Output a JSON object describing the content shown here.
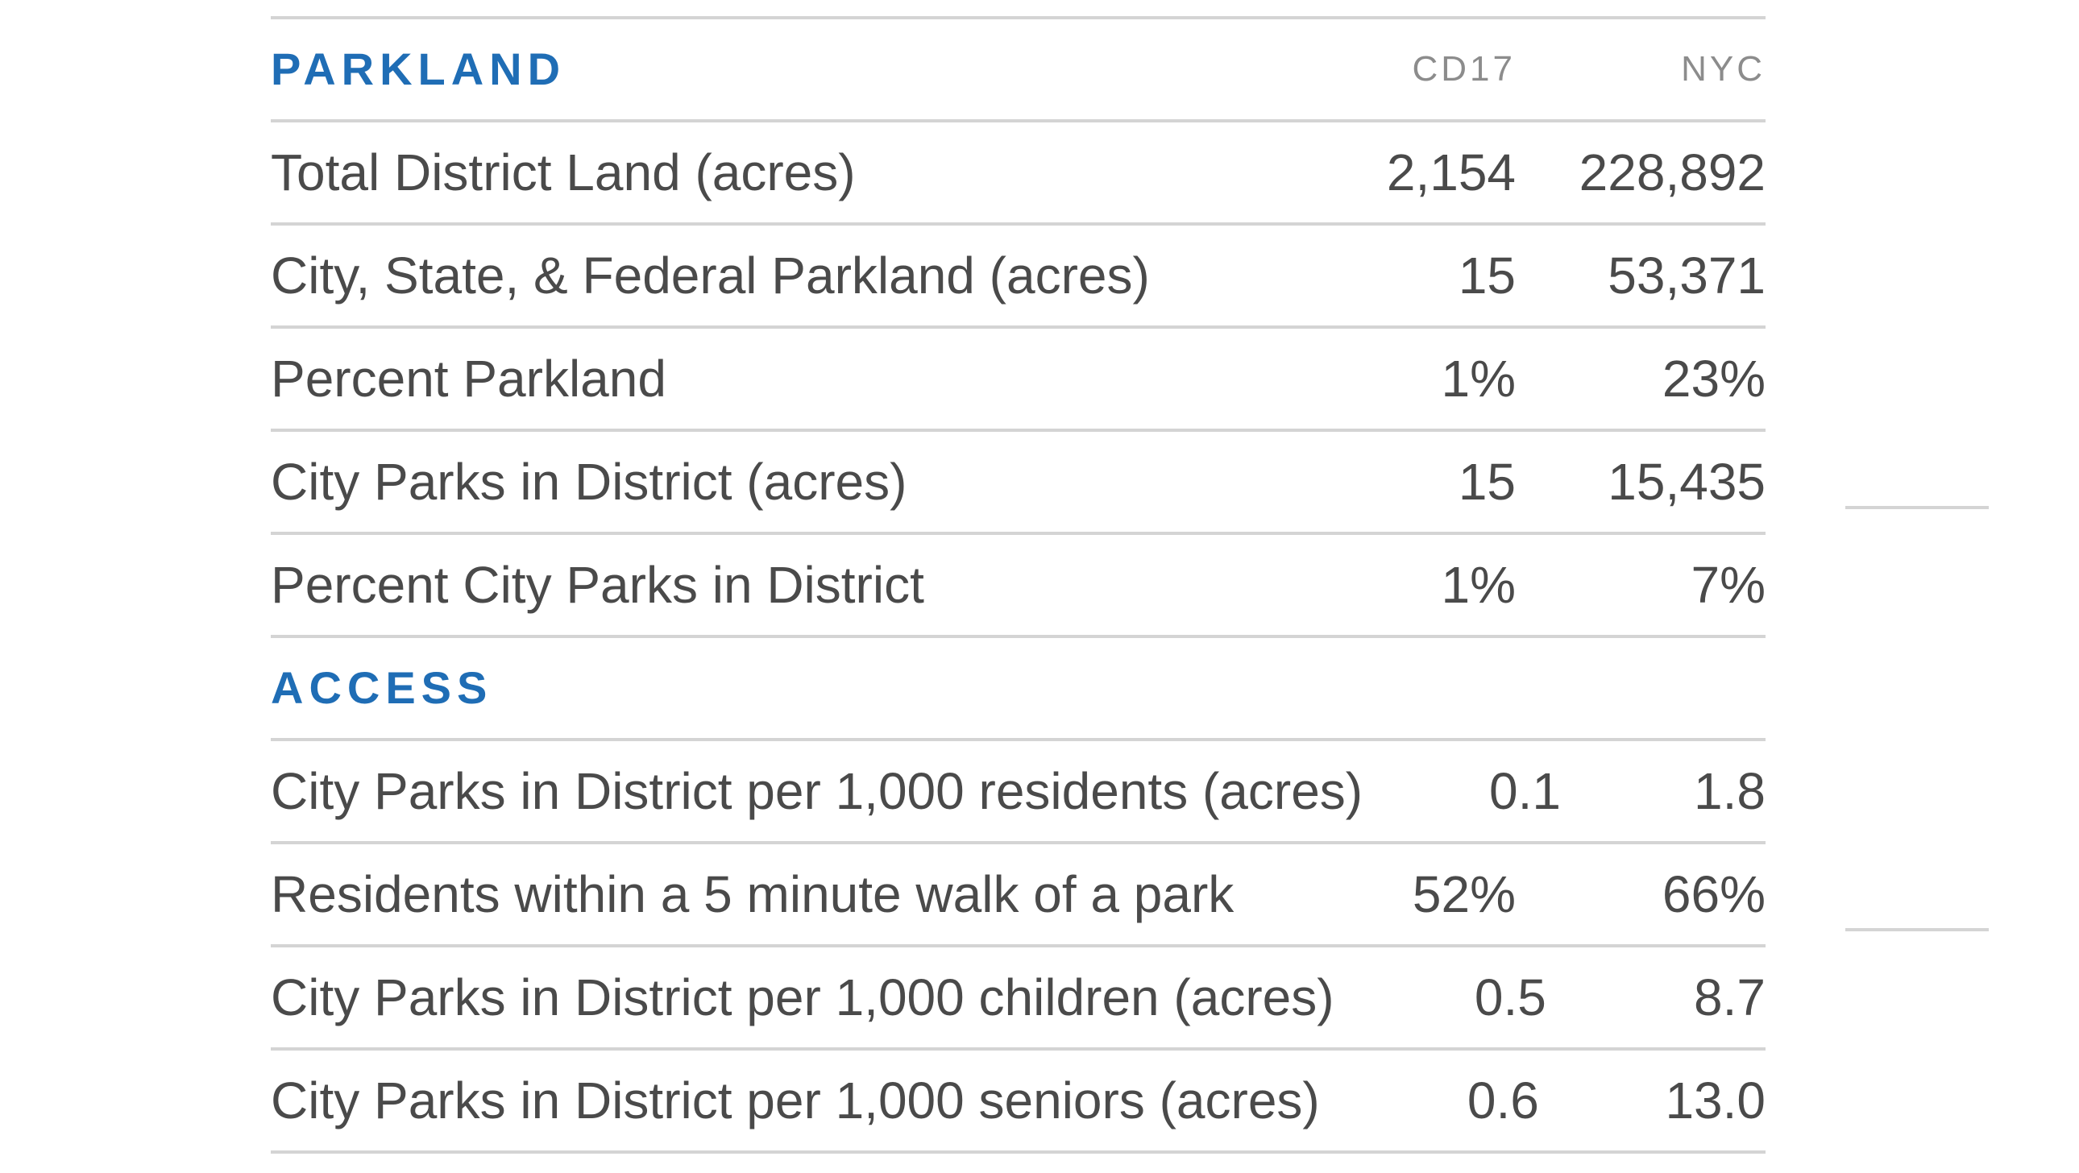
{
  "parkland": {
    "title": "PARKLAND",
    "col_a": "CD17",
    "col_b": "NYC",
    "rows": [
      {
        "label": "Total District Land (acres)",
        "a": "2,154",
        "b": "228,892"
      },
      {
        "label": "City, State, & Federal Parkland (acres)",
        "a": "15",
        "b": "53,371"
      },
      {
        "label": "Percent Parkland",
        "a": "1%",
        "b": "23%"
      },
      {
        "label": "City Parks in District (acres)",
        "a": "15",
        "b": "15,435"
      },
      {
        "label": "Percent City Parks in District",
        "a": "1%",
        "b": "7%"
      }
    ]
  },
  "access": {
    "title": "ACCESS",
    "rows": [
      {
        "label": "City Parks in District per 1,000 residents (acres)",
        "a": "0.1",
        "b": "1.8"
      },
      {
        "label": "Residents within a 5 minute walk of a park",
        "a": "52%",
        "b": "66%"
      },
      {
        "label": "City Parks in District per 1,000 children (acres)",
        "a": "0.5",
        "b": "8.7"
      },
      {
        "label": "City Parks in District per 1,000 seniors (acres)",
        "a": "0.6",
        "b": "13.0"
      }
    ]
  },
  "colors": {
    "heading": "#1f6db5",
    "text": "#4a4a4a",
    "column_header": "#8c8c8c",
    "rule": "#d4d4d4"
  }
}
